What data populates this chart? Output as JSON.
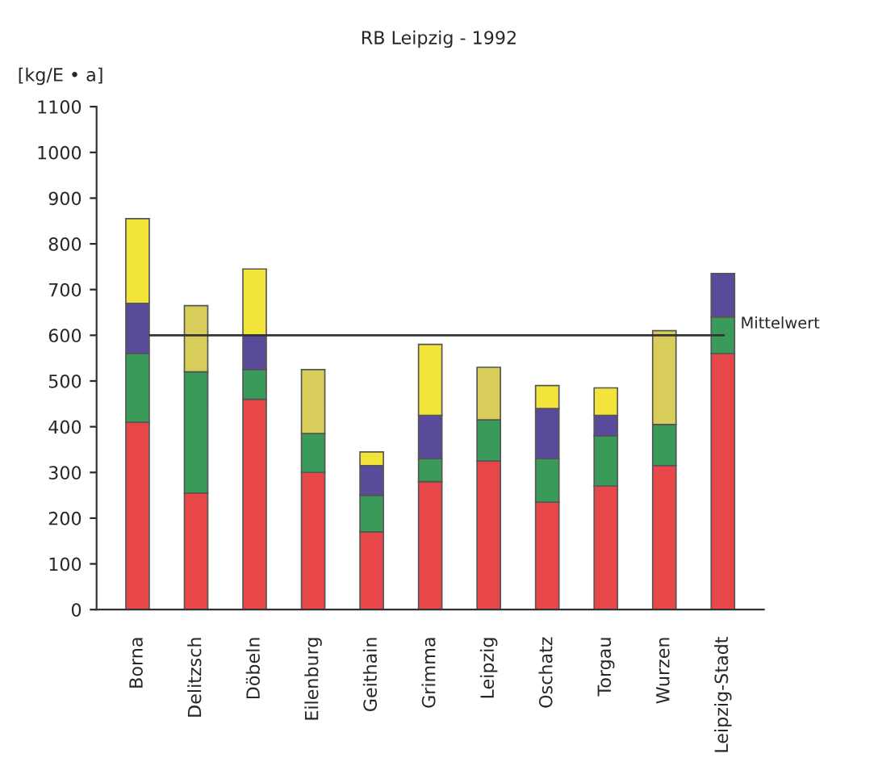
{
  "chart_data": {
    "type": "bar",
    "stacked": true,
    "title": "RB Leipzig - 1992",
    "ylabel": "[kg/E • a]",
    "categories": [
      "Borna",
      "Delitzsch",
      "Döbeln",
      "Eilenburg",
      "Geithain",
      "Grimma",
      "Leipzig",
      "Oschatz",
      "Torgau",
      "Wurzen",
      "Leipzig-Stadt"
    ],
    "series": [
      {
        "color": "#e8474a",
        "values": [
          410,
          255,
          460,
          300,
          170,
          280,
          325,
          235,
          270,
          315,
          560
        ]
      },
      {
        "color": "#3a9a5a",
        "values": [
          150,
          265,
          65,
          85,
          80,
          50,
          90,
          95,
          110,
          90,
          80
        ]
      },
      {
        "color": "#5a4a9a",
        "values": [
          110,
          null,
          75,
          null,
          65,
          95,
          null,
          110,
          45,
          null,
          95
        ]
      },
      {
        "colors": [
          "#f2e43a",
          "#d8cc5a",
          "#f2e43a",
          "#d8cc5a",
          "#f2e43a",
          "#f2e43a",
          "#d8cc5a",
          "#f2e43a",
          "#f2e43a",
          "#d8cc5a",
          "#f2e43a"
        ],
        "values": [
          185,
          145,
          145,
          140,
          30,
          155,
          115,
          50,
          60,
          205,
          null
        ]
      }
    ],
    "ylim": [
      0,
      1100
    ],
    "yticks": [
      0,
      100,
      200,
      300,
      400,
      500,
      600,
      700,
      800,
      900,
      1000,
      1100
    ],
    "ref_lines": [
      {
        "axis": "y",
        "value": 600,
        "label": "Mittelwert",
        "color": "#333333"
      }
    ],
    "grid": false,
    "legend": false
  }
}
